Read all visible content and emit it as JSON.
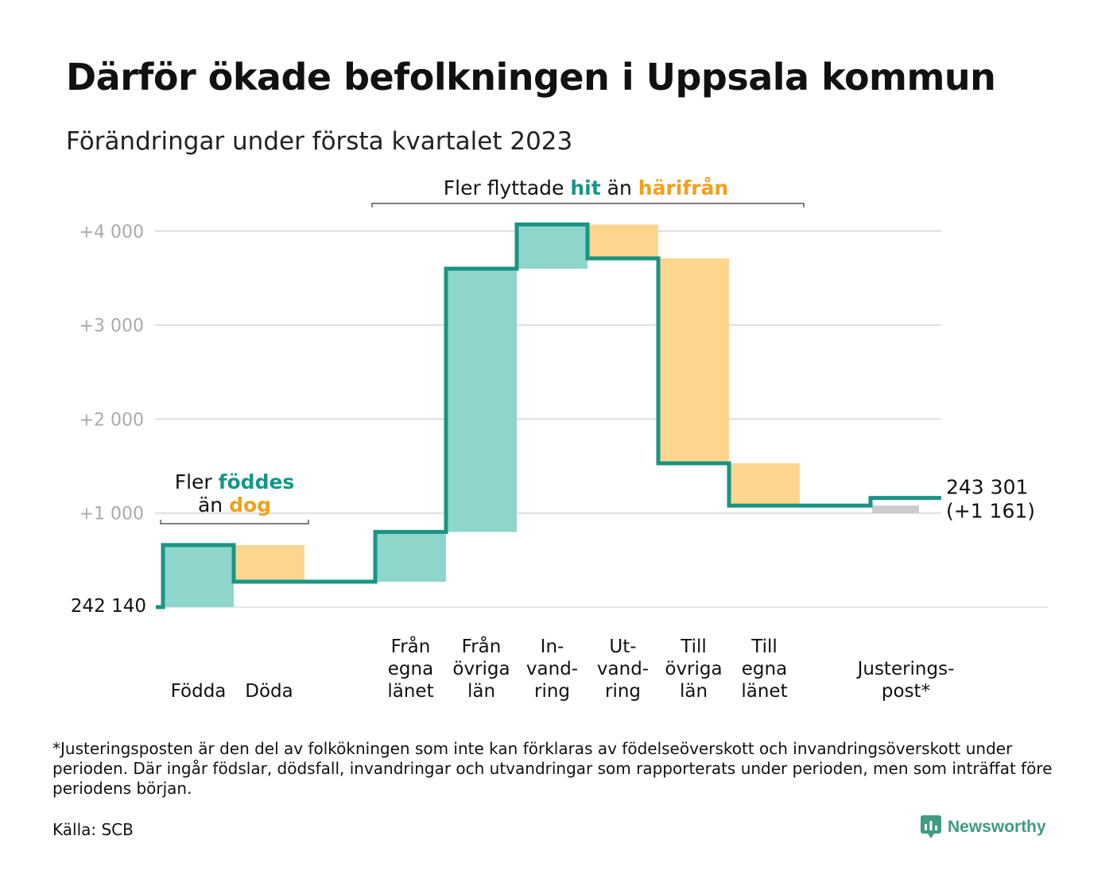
{
  "title": "Därför ökade befolkningen i Uppsala kommun",
  "subtitle": "Förändringar under första kvartalet 2023",
  "colors": {
    "inflow": "#8ed5cc",
    "outflow": "#fcd68f",
    "adjustment": "#cccccc",
    "line": "#1a9484",
    "accent_teal": "#17968a",
    "accent_orange": "#f29f1d",
    "grid": "#dddddd",
    "tick_label": "#aaaaaa"
  },
  "annotations": {
    "births": {
      "prefix": "Fler ",
      "highlight1": "föddes",
      "line2_prefix": "än ",
      "highlight2": "dog"
    },
    "moves": {
      "prefix": "Fler flyttade ",
      "highlight1": "hit",
      "middle": " än ",
      "highlight2": "härifrån"
    }
  },
  "start_label": "242 140",
  "end_label": {
    "total": "243 301",
    "change": "(+1 161)"
  },
  "chart_data": {
    "type": "waterfall",
    "title": "Därför ökade befolkningen i Uppsala kommun",
    "subtitle": "Förändringar under första kvartalet 2023",
    "base_value": 242140,
    "final_value": 243301,
    "net_change": 1161,
    "ylim": [
      0,
      4000
    ],
    "yticks": [
      1000,
      2000,
      3000,
      4000
    ],
    "ytick_labels": [
      "+1 000",
      "+2 000",
      "+3 000",
      "+4 000"
    ],
    "grid": true,
    "steps": [
      {
        "label_lines": [
          "Födda"
        ],
        "value": 660,
        "kind": "inflow"
      },
      {
        "label_lines": [
          "Döda"
        ],
        "value": -390,
        "kind": "outflow"
      },
      {
        "label_lines": [
          ""
        ],
        "value": 0,
        "kind": "gap"
      },
      {
        "label_lines": [
          "Från",
          "egna",
          "länet"
        ],
        "value": 530,
        "kind": "inflow"
      },
      {
        "label_lines": [
          "Från",
          "övriga",
          "län"
        ],
        "value": 2800,
        "kind": "inflow"
      },
      {
        "label_lines": [
          "In-",
          "vand-",
          "ring"
        ],
        "value": 470,
        "kind": "inflow"
      },
      {
        "label_lines": [
          "Ut-",
          "vand-",
          "ring"
        ],
        "value": -360,
        "kind": "outflow"
      },
      {
        "label_lines": [
          "Till",
          "övriga",
          "län"
        ],
        "value": -2180,
        "kind": "outflow"
      },
      {
        "label_lines": [
          "Till",
          "egna",
          "länet"
        ],
        "value": -450,
        "kind": "outflow"
      },
      {
        "label_lines": [
          ""
        ],
        "value": 0,
        "kind": "gap"
      },
      {
        "label_lines": [
          "Justerings-",
          "post*"
        ],
        "value": 81,
        "kind": "adjustment"
      }
    ]
  },
  "footnote": "*Justeringsposten är den del av folkökningen som inte kan förklaras av födelseöverskott och invandringsöverskott under perioden. Där ingår födslar, dödsfall, invandringar och utvandringar som rapporterats under perioden, men som inträffat före periodens början.",
  "source": "Källa: SCB",
  "brand": {
    "name": "Newsworthy",
    "icon": "newsworthy-logo-icon"
  }
}
